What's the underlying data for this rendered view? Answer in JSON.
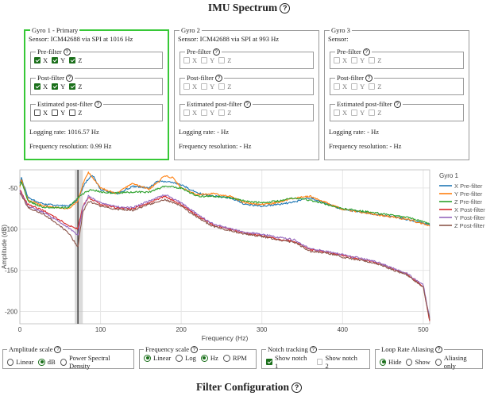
{
  "header": {
    "title": "IMU Spectrum",
    "help": "?"
  },
  "gyros": [
    {
      "legend": "Gyro 1 - Primary",
      "sensor": "Sensor: ICM42688 via SPI at 1016 Hz",
      "pre_filter": {
        "legend": "Pre-filter",
        "x": true,
        "y": true,
        "z": true,
        "disabled": false
      },
      "post_filter": {
        "legend": "Post-filter",
        "x": true,
        "y": true,
        "z": true,
        "disabled": false
      },
      "estimated": {
        "legend": "Estimated post-filter",
        "x": false,
        "y": false,
        "z": false,
        "disabled": false
      },
      "logging_rate": "Logging rate: 1016.57 Hz",
      "frequency_resolution": "Frequency resolution: 0.99 Hz"
    },
    {
      "legend": "Gyro 2",
      "sensor": "Sensor: ICM42688 via SPI at 993 Hz",
      "pre_filter": {
        "legend": "Pre-filter",
        "x": false,
        "y": false,
        "z": false,
        "disabled": true
      },
      "post_filter": {
        "legend": "Post-filter",
        "x": false,
        "y": false,
        "z": false,
        "disabled": true
      },
      "estimated": {
        "legend": "Estimated post-filter",
        "x": false,
        "y": false,
        "z": false,
        "disabled": true
      },
      "logging_rate": "Logging rate: - Hz",
      "frequency_resolution": "Frequency resolution: - Hz"
    },
    {
      "legend": "Gyro 3",
      "sensor": "Sensor:",
      "pre_filter": {
        "legend": "Pre-filter",
        "x": false,
        "y": false,
        "z": false,
        "disabled": true
      },
      "post_filter": {
        "legend": "Post-filter",
        "x": false,
        "y": false,
        "z": false,
        "disabled": true
      },
      "estimated": {
        "legend": "Estimated post-filter",
        "x": false,
        "y": false,
        "z": false,
        "disabled": true
      },
      "logging_rate": "Logging rate: - Hz",
      "frequency_resolution": "Frequency resolution: - Hz"
    }
  ],
  "axis_letters": {
    "x": "X",
    "y": "Y",
    "z": "Z"
  },
  "chart_data": {
    "type": "line",
    "xlabel": "Frequency (Hz)",
    "ylabel": "Amplitude (dB)",
    "xlim": [
      0,
      508
    ],
    "ylim": [
      -215,
      -28
    ],
    "xticks": [
      0,
      100,
      200,
      300,
      400,
      500
    ],
    "yticks": [
      -50,
      -100,
      -150,
      -200
    ],
    "legend_title": "Gyro 1",
    "legend_position": "top-right",
    "shaded_band": [
      68,
      78
    ],
    "marker_x": 72,
    "series": [
      {
        "name": "X Pre-filter",
        "color": "#1f77b4",
        "x": [
          0,
          2,
          10,
          30,
          60,
          72,
          80,
          90,
          100,
          120,
          140,
          160,
          170,
          180,
          200,
          220,
          240,
          260,
          280,
          300,
          320,
          340,
          360,
          400,
          440,
          480,
          508
        ],
        "y": [
          -45,
          -38,
          -62,
          -70,
          -72,
          -65,
          -45,
          -34,
          -52,
          -57,
          -48,
          -50,
          -42,
          -42,
          -46,
          -56,
          -60,
          -62,
          -70,
          -72,
          -70,
          -67,
          -62,
          -76,
          -82,
          -88,
          -95
        ]
      },
      {
        "name": "Y Pre-filter",
        "color": "#ff7f0e",
        "x": [
          0,
          2,
          10,
          30,
          60,
          72,
          80,
          85,
          90,
          100,
          120,
          140,
          160,
          180,
          190,
          200,
          220,
          240,
          260,
          280,
          300,
          320,
          340,
          360,
          400,
          440,
          480,
          508
        ],
        "y": [
          -50,
          -40,
          -65,
          -72,
          -75,
          -66,
          -40,
          -31,
          -38,
          -50,
          -57,
          -44,
          -52,
          -35,
          -38,
          -50,
          -58,
          -57,
          -60,
          -68,
          -70,
          -68,
          -62,
          -60,
          -76,
          -82,
          -88,
          -96
        ]
      },
      {
        "name": "Z Pre-filter",
        "color": "#2ca02c",
        "x": [
          0,
          2,
          10,
          30,
          60,
          72,
          80,
          90,
          100,
          120,
          140,
          160,
          180,
          200,
          220,
          240,
          260,
          280,
          300,
          320,
          340,
          360,
          400,
          440,
          480,
          508
        ],
        "y": [
          -48,
          -42,
          -66,
          -74,
          -74,
          -62,
          -56,
          -52,
          -55,
          -56,
          -55,
          -55,
          -48,
          -50,
          -60,
          -60,
          -62,
          -66,
          -68,
          -66,
          -62,
          -65,
          -75,
          -80,
          -86,
          -93
        ]
      },
      {
        "name": "X Post-filter",
        "color": "#d62728",
        "x": [
          0,
          10,
          30,
          60,
          72,
          78,
          85,
          100,
          120,
          140,
          160,
          180,
          200,
          220,
          240,
          260,
          280,
          300,
          320,
          340,
          360,
          380,
          400,
          440,
          480,
          500,
          508
        ],
        "y": [
          -52,
          -70,
          -78,
          -95,
          -100,
          -72,
          -62,
          -70,
          -74,
          -75,
          -68,
          -60,
          -70,
          -84,
          -95,
          -100,
          -105,
          -108,
          -112,
          -115,
          -125,
          -128,
          -132,
          -140,
          -155,
          -170,
          -212
        ]
      },
      {
        "name": "Y Post-filter",
        "color": "#9467bd",
        "x": [
          0,
          10,
          30,
          60,
          72,
          78,
          85,
          100,
          120,
          140,
          160,
          180,
          200,
          220,
          240,
          260,
          280,
          300,
          320,
          340,
          360,
          380,
          400,
          440,
          480,
          500,
          508
        ],
        "y": [
          -54,
          -72,
          -80,
          -98,
          -108,
          -74,
          -60,
          -68,
          -73,
          -74,
          -66,
          -58,
          -68,
          -82,
          -94,
          -99,
          -104,
          -106,
          -110,
          -113,
          -124,
          -127,
          -131,
          -139,
          -154,
          -168,
          -208
        ]
      },
      {
        "name": "Z Post-filter",
        "color": "#8c564b",
        "x": [
          0,
          10,
          30,
          60,
          72,
          78,
          85,
          100,
          120,
          140,
          160,
          180,
          200,
          220,
          240,
          260,
          280,
          300,
          320,
          340,
          360,
          380,
          400,
          440,
          480,
          500,
          508
        ],
        "y": [
          -55,
          -74,
          -82,
          -104,
          -122,
          -80,
          -66,
          -72,
          -76,
          -77,
          -70,
          -64,
          -72,
          -86,
          -97,
          -102,
          -106,
          -109,
          -113,
          -116,
          -127,
          -129,
          -134,
          -141,
          -156,
          -170,
          -210
        ]
      }
    ]
  },
  "options": [
    {
      "legend": "Amplitude scale",
      "items": [
        {
          "label": "Linear",
          "type": "radio",
          "selected": false
        },
        {
          "label": "dB",
          "type": "radio",
          "selected": true
        },
        {
          "label": "Power Spectral Density",
          "type": "radio",
          "selected": false
        }
      ]
    },
    {
      "legend": "Frequency scale",
      "items": [
        {
          "label": "Linear",
          "type": "radio",
          "selected": true
        },
        {
          "label": "Log",
          "type": "radio",
          "selected": false
        },
        {
          "label": "Hz",
          "type": "radio",
          "selected": true
        },
        {
          "label": "RPM",
          "type": "radio",
          "selected": false
        }
      ]
    },
    {
      "legend": "Notch tracking",
      "items": [
        {
          "label": "Show notch 1",
          "type": "checkbox",
          "selected": true
        },
        {
          "label": "Show notch 2",
          "type": "checkbox",
          "selected": false,
          "disabled": true
        }
      ]
    },
    {
      "legend": "Loop Rate Aliasing",
      "items": [
        {
          "label": "Hide",
          "type": "radio",
          "selected": true
        },
        {
          "label": "Show",
          "type": "radio",
          "selected": false
        },
        {
          "label": "Aliasing only",
          "type": "radio",
          "selected": false
        }
      ]
    }
  ],
  "footer": {
    "title": "Filter Configuration",
    "help": "?"
  },
  "colors": {
    "primary_border": "#37c837",
    "checked": "#1a6f1a"
  }
}
